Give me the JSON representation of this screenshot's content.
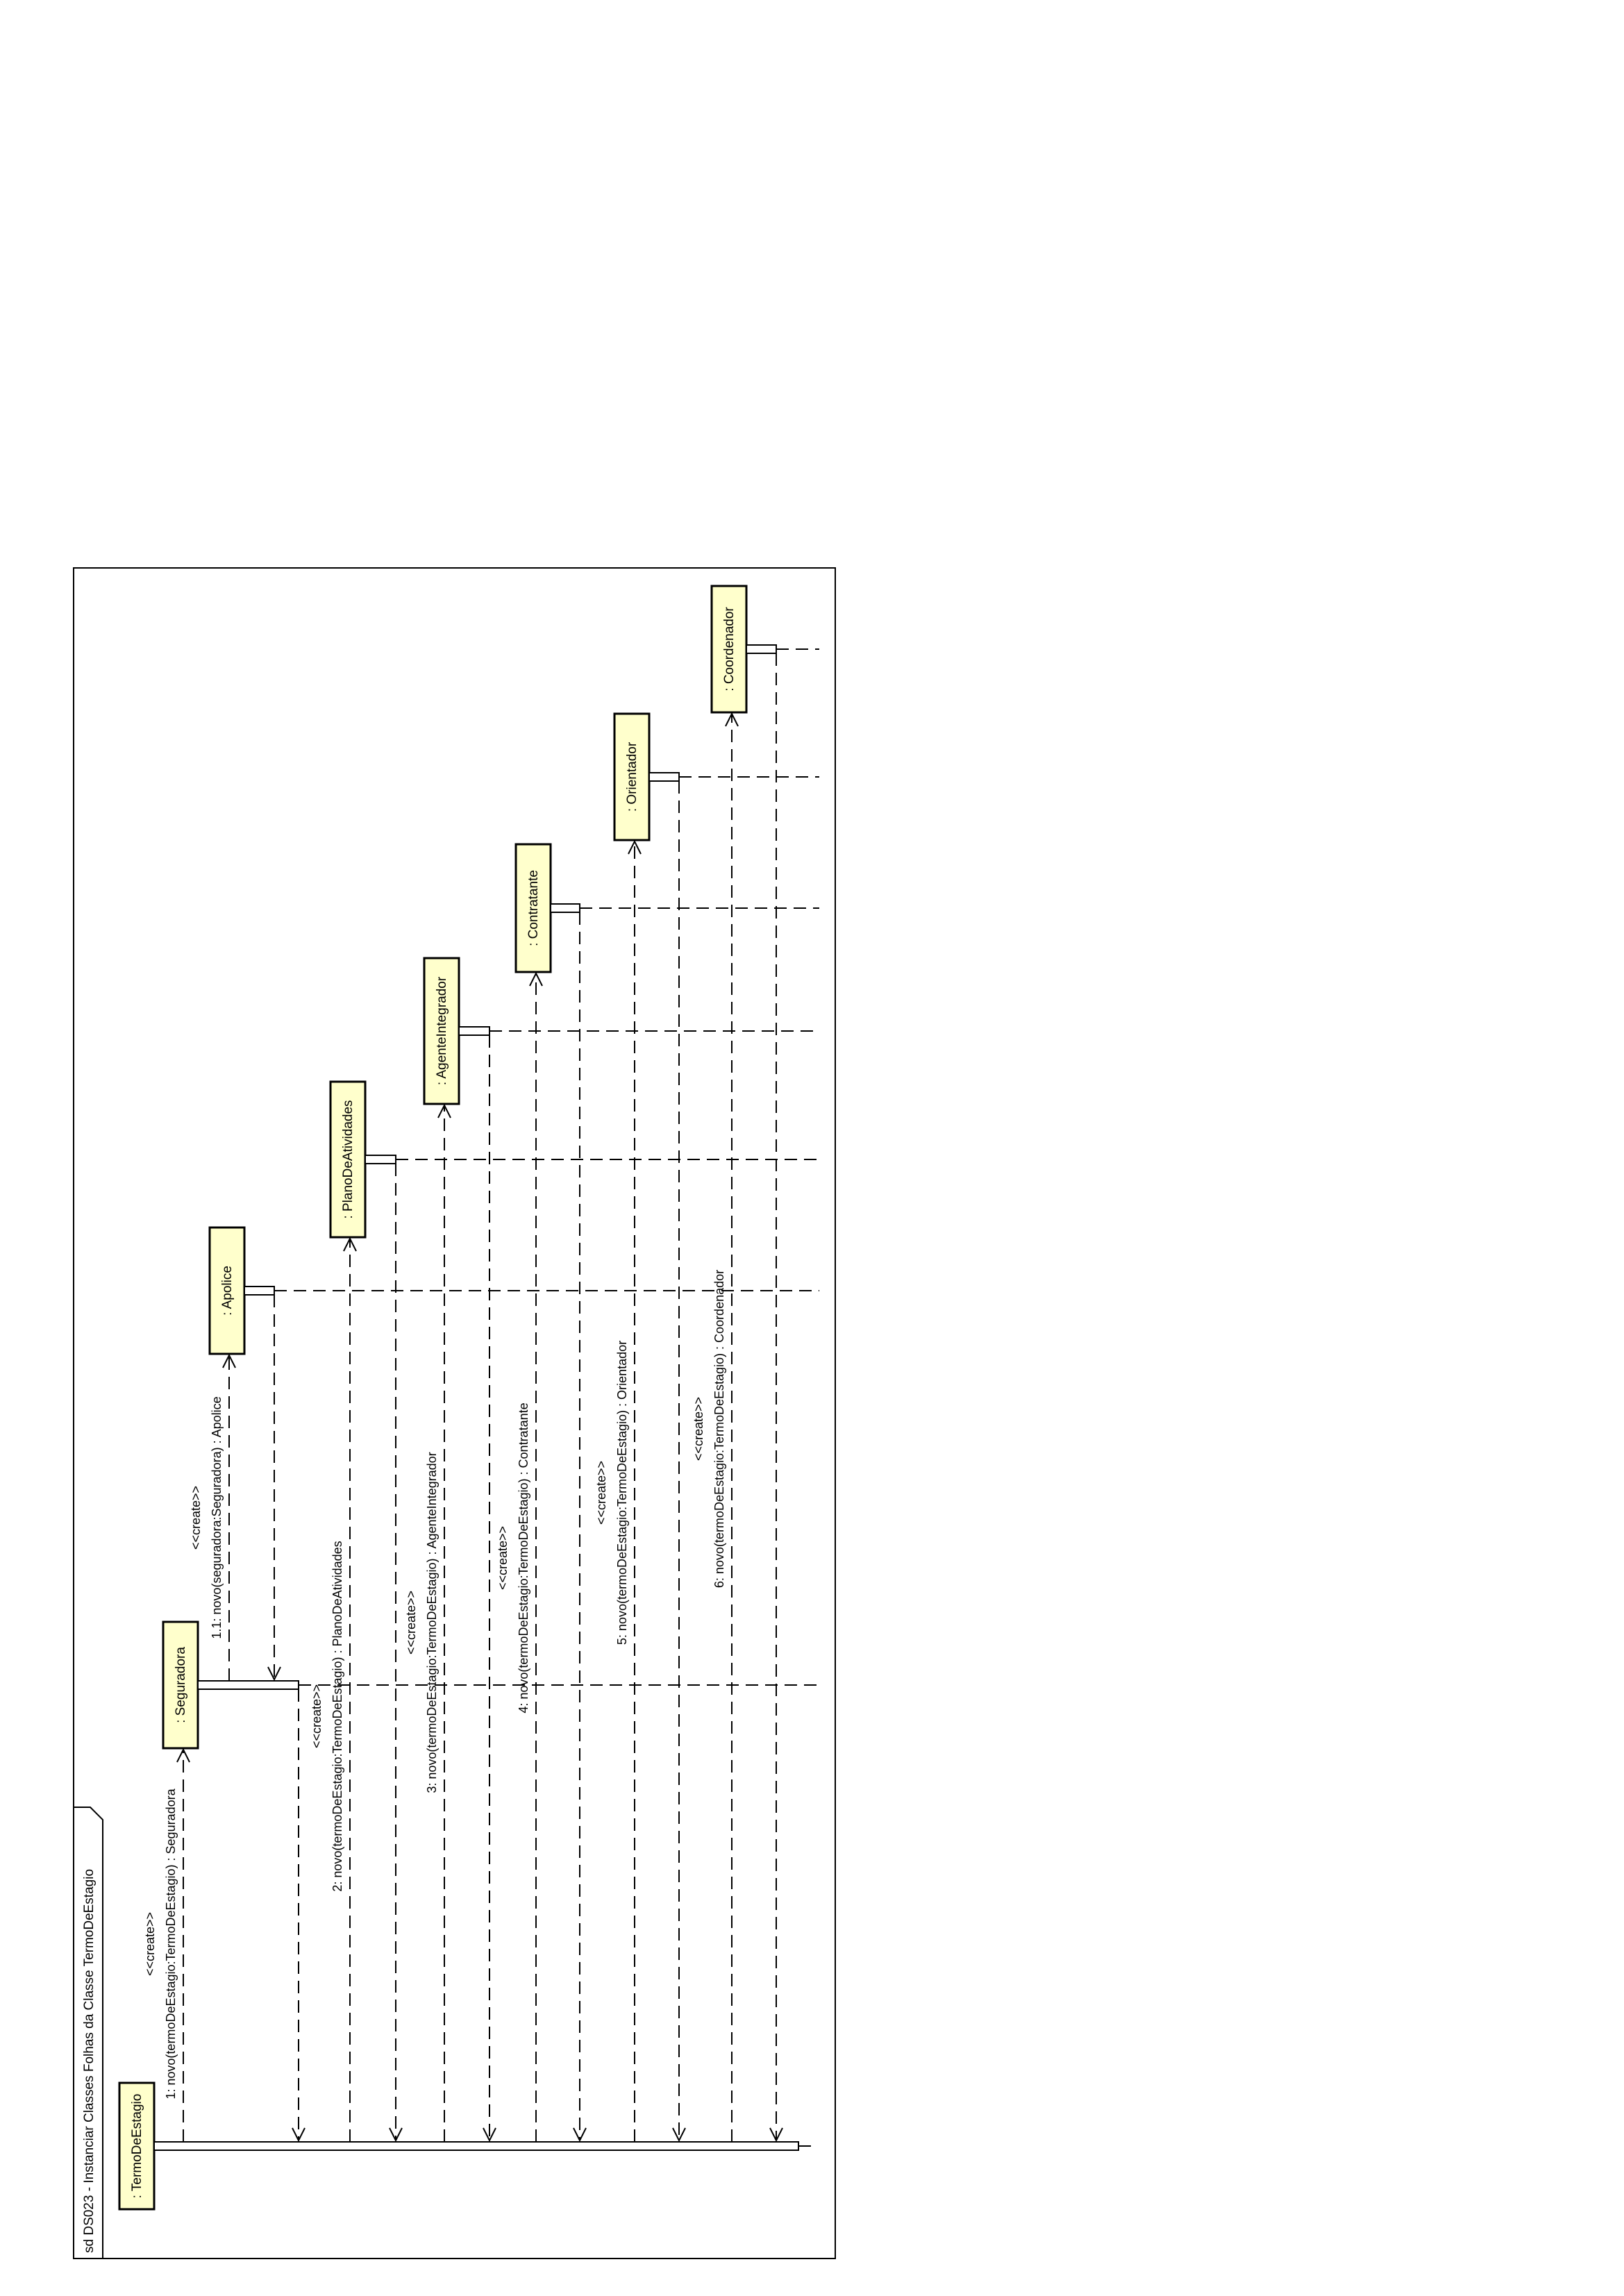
{
  "frame": {
    "title": "sd DS023 - Instanciar Classes Folhas da Classe TermoDeEstagio"
  },
  "colors": {
    "participant_fill": "#ffffcc",
    "stroke": "#000000",
    "background": "#ffffff"
  },
  "participants": [
    {
      "id": "termo",
      "label": ": TermoDeEstagio"
    },
    {
      "id": "seguradora",
      "label": ": Seguradora"
    },
    {
      "id": "apolice",
      "label": ": Apolice"
    },
    {
      "id": "plano",
      "label": ": PlanoDeAtividades"
    },
    {
      "id": "agente",
      "label": ": AgenteIntegrador"
    },
    {
      "id": "contratante",
      "label": ": Contratante"
    },
    {
      "id": "orientador",
      "label": ": Orientador"
    },
    {
      "id": "coordenador",
      "label": ": Coordenador"
    }
  ],
  "messages": [
    {
      "id": "m1",
      "stereotype": "<<create>>",
      "label": "1: novo(termoDeEstagio:TermoDeEstagio) : Seguradora"
    },
    {
      "id": "m11",
      "stereotype": "<<create>>",
      "label": "1.1: novo(seguradora:Seguradora) : Apolice"
    },
    {
      "id": "m2",
      "stereotype": "<<create>>",
      "label": "2: novo(termoDeEstagio:TermoDeEstagio) : PlanoDeAtividades"
    },
    {
      "id": "m3",
      "stereotype": "<<create>>",
      "label": "3: novo(termoDeEstagio:TermoDeEstagio) : AgenteIntegrador"
    },
    {
      "id": "m4",
      "stereotype": "<<create>>",
      "label": "4: novo(termoDeEstagio:TermoDeEstagio) : Contratante"
    },
    {
      "id": "m5",
      "stereotype": "<<create>>",
      "label": "5: novo(termoDeEstagio:TermoDeEstagio) : Orientador"
    },
    {
      "id": "m6",
      "stereotype": "<<create>>",
      "label": "6: novo(termoDeEstagio:TermoDeEstagio) : Coordenador"
    }
  ]
}
